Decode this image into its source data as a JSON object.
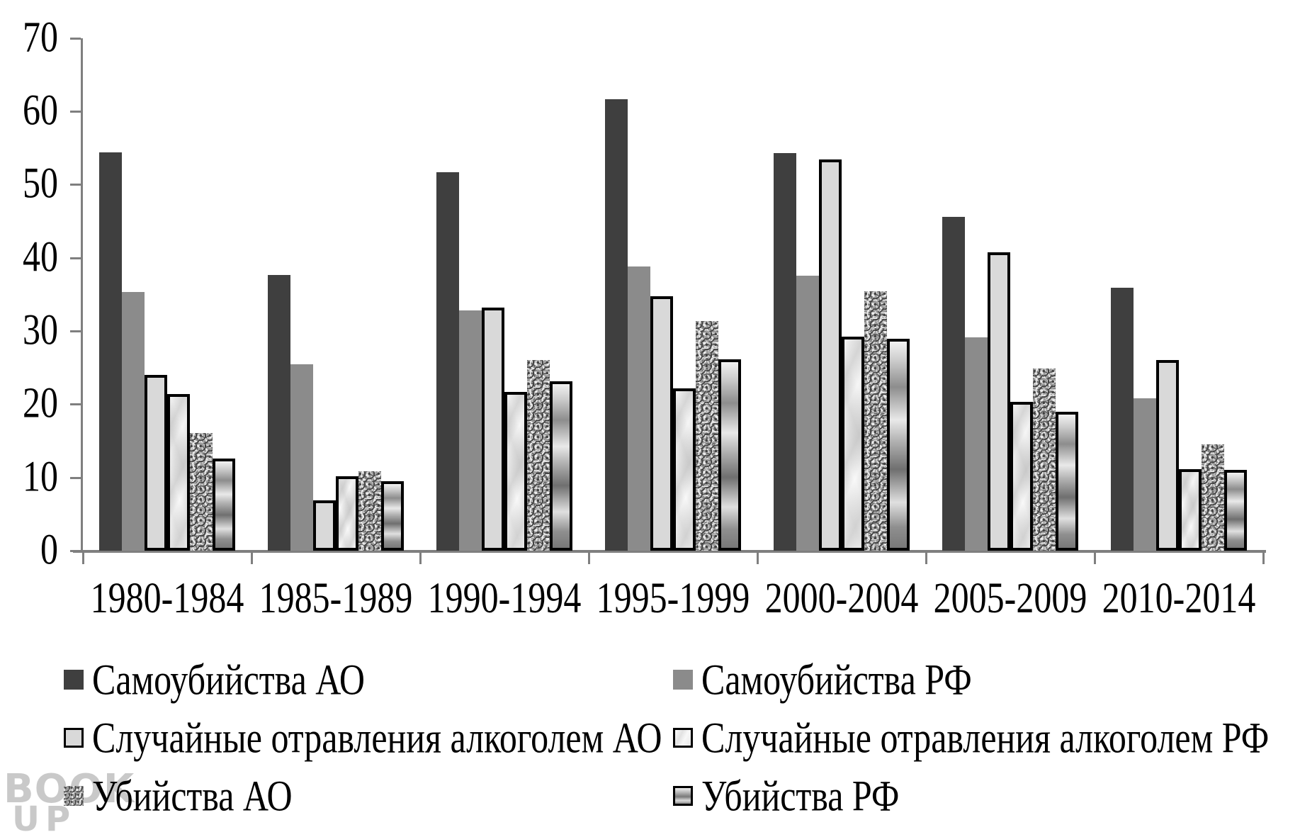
{
  "chart_data": {
    "type": "bar",
    "categories": [
      "1980-1984",
      "1985-1989",
      "1990-1994",
      "1995-1999",
      "2000-2004",
      "2005-2009",
      "2010-2014"
    ],
    "series": [
      {
        "name": "Самоубийства АО",
        "style": "dark-solid",
        "values": [
          54.4,
          37.6,
          51.7,
          61.6,
          54.3,
          45.6,
          35.9
        ]
      },
      {
        "name": "Самоубийства РФ",
        "style": "gray-solid",
        "values": [
          35.3,
          25.4,
          32.8,
          38.8,
          37.5,
          29.1,
          20.8
        ]
      },
      {
        "name": "Случайные отравления алкоголем АО",
        "style": "light-outlined",
        "values": [
          24.0,
          6.9,
          33.2,
          34.7,
          53.4,
          40.7,
          26.0
        ]
      },
      {
        "name": "Случайные отравления алкоголем РФ",
        "style": "marble-outlined",
        "values": [
          21.4,
          10.2,
          21.7,
          22.2,
          29.2,
          20.3,
          11.1
        ]
      },
      {
        "name": "Убийства АО",
        "style": "speckle",
        "values": [
          16.1,
          10.8,
          26.0,
          31.3,
          35.4,
          24.9,
          14.5
        ]
      },
      {
        "name": "Убийства РФ",
        "style": "gradient-outlined",
        "values": [
          12.6,
          9.5,
          23.1,
          26.1,
          28.9,
          19.0,
          11.0
        ]
      }
    ],
    "title": "",
    "xlabel": "",
    "ylabel": "",
    "ylim": [
      0,
      70
    ],
    "yticks": [
      0,
      10,
      20,
      30,
      40,
      50,
      60,
      70
    ],
    "grid": false,
    "legend_position": "bottom",
    "colors": {
      "series_dark": "#3f3f3f",
      "series_gray": "#8b8b8b",
      "series_light": "#d9d9d9",
      "outline": "#000000",
      "axis": "#7f7f7f",
      "background": "#ffffff"
    }
  },
  "watermark": {
    "line1": "BOOK",
    "line2": "UP"
  }
}
